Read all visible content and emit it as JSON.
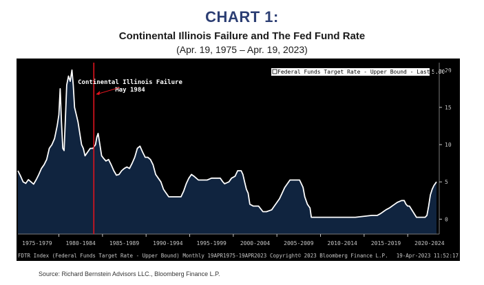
{
  "header": {
    "label": "CHART 1:",
    "title": "Continental Illinois Failure and The Fed Fund Rate",
    "subtitle": "(Apr. 19, 1975 – Apr. 19, 2023)"
  },
  "source": "Source:  Richard Bernstein Advisors LLC., Bloomberg Finance L.P.",
  "chart_data": {
    "type": "area",
    "x_unit": "year (decimal)",
    "xlim": [
      1975.3,
      2023.3
    ],
    "ylim": [
      -2,
      21
    ],
    "y_ticks": [
      0,
      5,
      10,
      15,
      20
    ],
    "x_tick_labels": [
      "1975-1979",
      "1980-1984",
      "1985-1989",
      "1990-1994",
      "1995-1999",
      "2000-2004",
      "2005-2009",
      "2010-2014",
      "2015-2019",
      "2020-2024"
    ],
    "x_tick_centers": [
      1977.5,
      1982.5,
      1987.5,
      1992.5,
      1997.5,
      2002.5,
      2007.5,
      2012.5,
      2017.5,
      2022.5
    ],
    "x_ticks": [
      1975,
      1980,
      1985,
      1990,
      1995,
      2000,
      2005,
      2010,
      2015,
      2020
    ],
    "grid": false,
    "legend_position": "top-right",
    "series": [
      {
        "name": "Federal Funds Target Rate - Upper Bound - Last Price",
        "last_value": "5.00",
        "x": [
          1975.3,
          1975.6,
          1975.9,
          1976.2,
          1976.5,
          1976.8,
          1977.1,
          1977.4,
          1977.7,
          1978.0,
          1978.3,
          1978.6,
          1978.9,
          1979.2,
          1979.5,
          1979.8,
          1980.0,
          1980.15,
          1980.3,
          1980.45,
          1980.6,
          1980.75,
          1980.9,
          1981.1,
          1981.3,
          1981.5,
          1981.65,
          1981.8,
          1982.0,
          1982.2,
          1982.4,
          1982.6,
          1982.8,
          1983.0,
          1983.3,
          1983.6,
          1983.9,
          1984.2,
          1984.35,
          1984.5,
          1984.7,
          1984.9,
          1985.1,
          1985.4,
          1985.7,
          1986.0,
          1986.3,
          1986.6,
          1986.9,
          1987.2,
          1987.5,
          1987.8,
          1988.1,
          1988.4,
          1988.7,
          1989.0,
          1989.3,
          1989.6,
          1989.9,
          1990.2,
          1990.5,
          1990.8,
          1991.1,
          1991.4,
          1991.7,
          1992.0,
          1992.3,
          1992.6,
          1993.0,
          1993.5,
          1994.0,
          1994.3,
          1994.6,
          1994.9,
          1995.2,
          1995.5,
          1996.0,
          1996.5,
          1997.0,
          1997.5,
          1998.0,
          1998.5,
          1998.8,
          1999.0,
          1999.5,
          1999.8,
          2000.2,
          2000.5,
          2000.9,
          2001.1,
          2001.3,
          2001.5,
          2001.7,
          2001.9,
          2002.3,
          2002.9,
          2003.4,
          2003.8,
          2004.4,
          2004.7,
          2005.0,
          2005.3,
          2005.6,
          2005.9,
          2006.2,
          2006.5,
          2007.0,
          2007.6,
          2007.8,
          2008.0,
          2008.2,
          2008.5,
          2008.8,
          2008.95,
          2010.0,
          2012.0,
          2014.0,
          2015.9,
          2016.5,
          2016.9,
          2017.2,
          2017.5,
          2017.9,
          2018.2,
          2018.5,
          2018.8,
          2019.3,
          2019.6,
          2019.8,
          2020.0,
          2020.2,
          2021.0,
          2022.0,
          2022.2,
          2022.4,
          2022.6,
          2022.8,
          2023.0,
          2023.3
        ],
        "y": [
          6.5,
          5.8,
          5.0,
          4.8,
          5.3,
          5.0,
          4.7,
          5.3,
          6.0,
          6.8,
          7.3,
          8.0,
          9.5,
          10.0,
          10.8,
          12.5,
          14.0,
          17.5,
          13.0,
          9.5,
          9.2,
          13.5,
          18.0,
          19.2,
          18.5,
          20.0,
          18.0,
          15.0,
          14.0,
          13.0,
          11.5,
          10.0,
          9.5,
          8.5,
          9.0,
          9.5,
          9.5,
          10.0,
          11.0,
          11.5,
          10.0,
          8.5,
          8.2,
          7.8,
          8.0,
          7.3,
          6.5,
          5.9,
          6.0,
          6.5,
          6.8,
          7.0,
          6.8,
          7.5,
          8.3,
          9.5,
          9.8,
          9.0,
          8.3,
          8.3,
          8.0,
          7.3,
          6.0,
          5.5,
          5.0,
          4.0,
          3.5,
          3.0,
          3.0,
          3.0,
          3.0,
          3.75,
          4.75,
          5.5,
          6.0,
          5.75,
          5.25,
          5.25,
          5.25,
          5.5,
          5.5,
          5.5,
          5.0,
          4.75,
          5.0,
          5.5,
          5.75,
          6.5,
          6.5,
          6.0,
          5.0,
          4.0,
          3.5,
          2.0,
          1.75,
          1.75,
          1.0,
          1.0,
          1.25,
          1.75,
          2.25,
          2.75,
          3.5,
          4.25,
          4.75,
          5.25,
          5.25,
          5.25,
          4.75,
          4.25,
          3.0,
          2.0,
          1.5,
          0.25,
          0.25,
          0.25,
          0.25,
          0.5,
          0.5,
          0.75,
          1.0,
          1.25,
          1.5,
          1.75,
          2.0,
          2.25,
          2.5,
          2.5,
          2.0,
          1.75,
          1.75,
          0.25,
          0.25,
          0.5,
          1.75,
          3.25,
          4.0,
          4.5,
          5.0
        ],
        "color": "#ffffff",
        "fill": "#10243f"
      }
    ],
    "annotations": [
      {
        "text": "Continental Illinois Failure",
        "text2": "May 1984",
        "x": 1984.4,
        "line_color": "#e0141e"
      }
    ],
    "footer": {
      "left": "FDTR Index (Federal Funds Target Rate - Upper Bound)  Monthly 19APR1975-19APR2023",
      "center": "Copyright© 2023 Bloomberg Finance L.P.",
      "right": "19-Apr-2023 11:52:17"
    },
    "background": "#000000",
    "axis_text_color": "#c8c8c8"
  }
}
